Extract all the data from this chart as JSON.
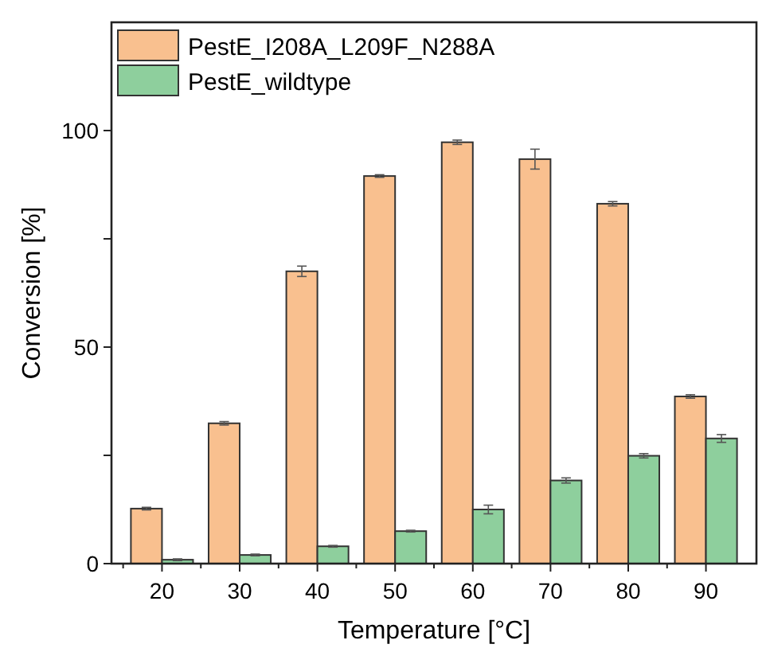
{
  "chart_data": {
    "type": "bar",
    "xlabel": "Temperature [°C]",
    "ylabel": "Conversion  [%]",
    "categories": [
      "20",
      "30",
      "40",
      "50",
      "60",
      "70",
      "80",
      "90"
    ],
    "series": [
      {
        "name": "PestE_I208A_L209F_N288A",
        "color": "#f9c08f",
        "values": [
          12.7,
          32.4,
          67.5,
          89.5,
          97.3,
          93.4,
          83.1,
          38.6
        ],
        "errors": [
          0.3,
          0.4,
          1.2,
          0.3,
          0.5,
          2.3,
          0.5,
          0.4
        ]
      },
      {
        "name": "PestE_wildtype",
        "color": "#8ecf9d",
        "values": [
          0.9,
          2.0,
          4.0,
          7.5,
          12.5,
          19.2,
          24.9,
          28.9
        ],
        "errors": [
          0.2,
          0.2,
          0.2,
          0.2,
          1.0,
          0.6,
          0.5,
          0.9
        ]
      }
    ],
    "ylim": [
      0,
      125
    ],
    "yticks": [
      0,
      {
        "value": 25,
        "label": null
      },
      50,
      {
        "value": 75,
        "label": null
      },
      100
    ],
    "legend": "top left",
    "grid": false
  }
}
